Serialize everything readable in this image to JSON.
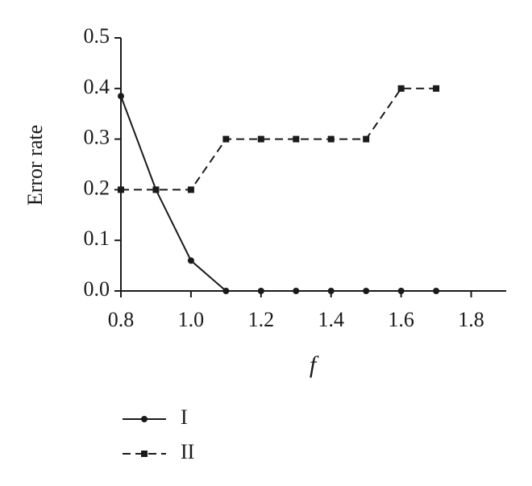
{
  "chart_data": {
    "type": "line",
    "x_label": "f",
    "y_label": "Error rate",
    "x": [
      0.8,
      0.9,
      1.0,
      1.1,
      1.2,
      1.3,
      1.4,
      1.5,
      1.6,
      1.7
    ],
    "series": [
      {
        "name": "I",
        "color": "#1a1a1a",
        "line_style": "solid",
        "marker": "circle",
        "values": [
          0.385,
          0.2,
          0.06,
          0,
          0,
          0,
          0,
          0,
          0,
          0
        ]
      },
      {
        "name": "II",
        "color": "#1a1a1a",
        "line_style": "dashed",
        "marker": "square",
        "values": [
          0.2,
          0.2,
          0.2,
          0.3,
          0.3,
          0.3,
          0.3,
          0.3,
          0.4,
          0.4
        ]
      }
    ],
    "xlim": [
      0.8,
      1.9
    ],
    "xticks": [
      0.8,
      {
        "value": 1.0,
        "label": "1.0"
      },
      1.2,
      1.4,
      1.6,
      1.8
    ],
    "ylim": [
      0,
      0.5
    ],
    "yticks": [
      {
        "value": 0,
        "label": "0.0"
      },
      0.1,
      0.2,
      0.3,
      0.4,
      0.5
    ],
    "grid": false
  }
}
